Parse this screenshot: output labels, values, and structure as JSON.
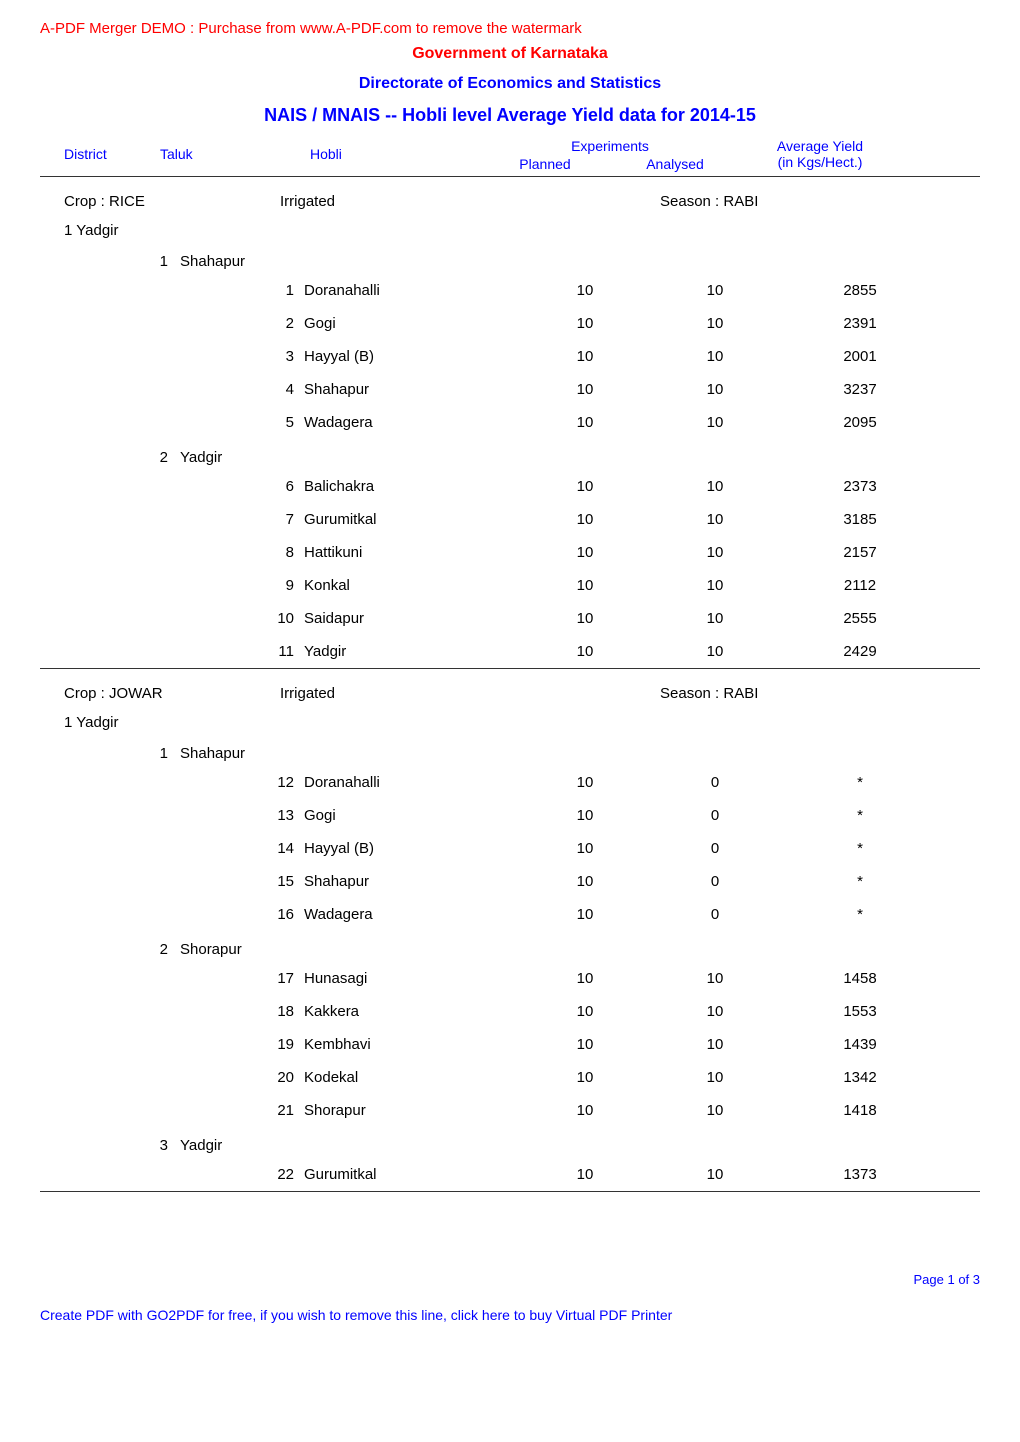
{
  "watermark": {
    "prefix": "A-PDF Merger DEMO : Purchase from www.A-PDF.com to remove the watermark",
    "govTitle": "Government of Karnataka"
  },
  "directorate": "Directorate of Economics and Statistics",
  "reportTitle": "NAIS / MNAIS -- Hobli level Average Yield data for 2014-15",
  "columns": {
    "district": "District",
    "taluk": "Taluk",
    "hobli": "Hobli",
    "experiments": "Experiments",
    "planned": "Planned",
    "analysed": "Analysed",
    "avgYield": "Average Yield",
    "yieldUnit": "(in Kgs/Hect.)"
  },
  "sections": [
    {
      "crop": "Crop : RICE",
      "irrigated": "Irrigated",
      "season": "Season : RABI",
      "district": "1 Yadgir",
      "taluks": [
        {
          "num": "1",
          "name": "Shahapur",
          "rows": [
            {
              "num": "1",
              "hobli": "Doranahalli",
              "planned": "10",
              "analysed": "10",
              "yield": "2855"
            },
            {
              "num": "2",
              "hobli": "Gogi",
              "planned": "10",
              "analysed": "10",
              "yield": "2391"
            },
            {
              "num": "3",
              "hobli": "Hayyal (B)",
              "planned": "10",
              "analysed": "10",
              "yield": "2001"
            },
            {
              "num": "4",
              "hobli": "Shahapur",
              "planned": "10",
              "analysed": "10",
              "yield": "3237"
            },
            {
              "num": "5",
              "hobli": "Wadagera",
              "planned": "10",
              "analysed": "10",
              "yield": "2095"
            }
          ]
        },
        {
          "num": "2",
          "name": "Yadgir",
          "rows": [
            {
              "num": "6",
              "hobli": "Balichakra",
              "planned": "10",
              "analysed": "10",
              "yield": "2373"
            },
            {
              "num": "7",
              "hobli": "Gurumitkal",
              "planned": "10",
              "analysed": "10",
              "yield": "3185"
            },
            {
              "num": "8",
              "hobli": "Hattikuni",
              "planned": "10",
              "analysed": "10",
              "yield": "2157"
            },
            {
              "num": "9",
              "hobli": "Konkal",
              "planned": "10",
              "analysed": "10",
              "yield": "2112"
            },
            {
              "num": "10",
              "hobli": "Saidapur",
              "planned": "10",
              "analysed": "10",
              "yield": "2555"
            },
            {
              "num": "11",
              "hobli": "Yadgir",
              "planned": "10",
              "analysed": "10",
              "yield": "2429"
            }
          ]
        }
      ]
    },
    {
      "crop": "Crop : JOWAR",
      "irrigated": "Irrigated",
      "season": "Season : RABI",
      "district": "1 Yadgir",
      "taluks": [
        {
          "num": "1",
          "name": "Shahapur",
          "rows": [
            {
              "num": "12",
              "hobli": "Doranahalli",
              "planned": "10",
              "analysed": "0",
              "yield": "*"
            },
            {
              "num": "13",
              "hobli": "Gogi",
              "planned": "10",
              "analysed": "0",
              "yield": "*"
            },
            {
              "num": "14",
              "hobli": "Hayyal (B)",
              "planned": "10",
              "analysed": "0",
              "yield": "*"
            },
            {
              "num": "15",
              "hobli": "Shahapur",
              "planned": "10",
              "analysed": "0",
              "yield": "*"
            },
            {
              "num": "16",
              "hobli": "Wadagera",
              "planned": "10",
              "analysed": "0",
              "yield": "*"
            }
          ]
        },
        {
          "num": "2",
          "name": "Shorapur",
          "rows": [
            {
              "num": "17",
              "hobli": "Hunasagi",
              "planned": "10",
              "analysed": "10",
              "yield": "1458"
            },
            {
              "num": "18",
              "hobli": "Kakkera",
              "planned": "10",
              "analysed": "10",
              "yield": "1553"
            },
            {
              "num": "19",
              "hobli": "Kembhavi",
              "planned": "10",
              "analysed": "10",
              "yield": "1439"
            },
            {
              "num": "20",
              "hobli": "Kodekal",
              "planned": "10",
              "analysed": "10",
              "yield": "1342"
            },
            {
              "num": "21",
              "hobli": "Shorapur",
              "planned": "10",
              "analysed": "10",
              "yield": "1418"
            }
          ]
        },
        {
          "num": "3",
          "name": "Yadgir",
          "rows": [
            {
              "num": "22",
              "hobli": "Gurumitkal",
              "planned": "10",
              "analysed": "10",
              "yield": "1373"
            }
          ]
        }
      ]
    }
  ],
  "pageFooter": "Page 1 of 3",
  "bottomLink": "Create PDF with GO2PDF for free, if you wish to remove this line, click here to buy Virtual PDF Printer",
  "colors": {
    "red": "#ff0000",
    "blue": "#0000ff",
    "black": "#000000",
    "border": "#333333"
  },
  "layout": {
    "pageWidth": 1020,
    "pageHeight": 1442,
    "fontSize": 15,
    "headerFontSize": 16,
    "titleFontSize": 18
  }
}
